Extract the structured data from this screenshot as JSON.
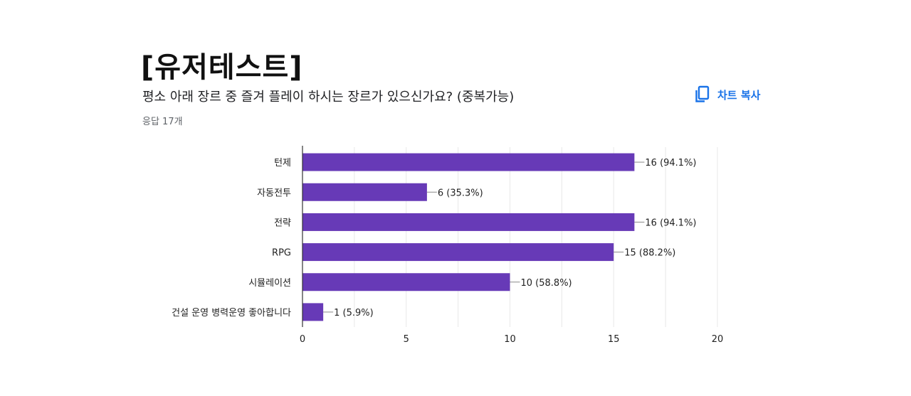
{
  "page": {
    "title": "[유저테스트]",
    "question": "평소 아래 장르 중 즐겨 플레이 하시는 장르가 있으신가요? (중복가능)",
    "response_count": "응답 17개",
    "copy_label": "차트 복사",
    "accent_color": "#1a73e8"
  },
  "chart_data": {
    "type": "bar",
    "orientation": "horizontal",
    "title": "",
    "xlabel": "",
    "ylabel": "",
    "categories": [
      "턴제",
      "자동전투",
      "전략",
      "RPG",
      "시뮬레이션",
      "건설 운영 병력운영 좋아합니다"
    ],
    "values": [
      16,
      6,
      16,
      15,
      10,
      1
    ],
    "value_labels": [
      "16 (94.1%)",
      "6 (35.3%)",
      "16 (94.1%)",
      "15 (88.2%)",
      "10 (58.8%)",
      "1 (5.9%)"
    ],
    "xlim": [
      0,
      20
    ],
    "xticks": [
      0,
      5,
      10,
      15,
      20
    ],
    "bar_color": "#673ab7",
    "grid": true,
    "legend": "none"
  }
}
